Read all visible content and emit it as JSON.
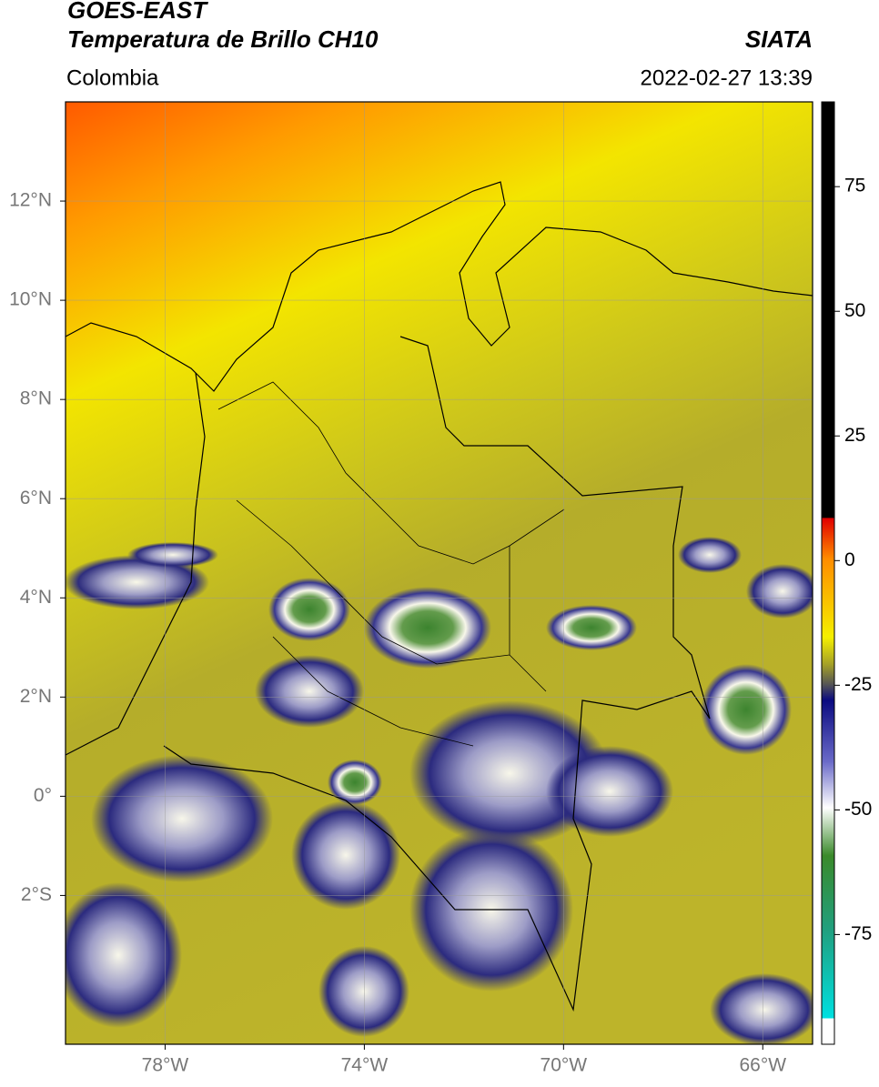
{
  "header": {
    "title_line1": "GOES-EAST",
    "title_line2": "Temperatura de Brillo CH10",
    "source": "SIATA",
    "region": "Colombia",
    "datetime": "2022-02-27 13:39"
  },
  "map": {
    "lonlim": [
      -80,
      -65
    ],
    "latlim": [
      -5,
      14
    ],
    "lonticks": [
      {
        "value": -78,
        "label": "78°W"
      },
      {
        "value": -74,
        "label": "74°W"
      },
      {
        "value": -70,
        "label": "70°W"
      },
      {
        "value": -66,
        "label": "66°W"
      }
    ],
    "latticks": [
      {
        "value": 12,
        "label": "12°N"
      },
      {
        "value": 10,
        "label": "10°N"
      },
      {
        "value": 8,
        "label": "8°N"
      },
      {
        "value": 6,
        "label": "6°N"
      },
      {
        "value": 4,
        "label": "4°N"
      },
      {
        "value": 2,
        "label": "2°N"
      },
      {
        "value": 0,
        "label": "0°"
      },
      {
        "value": -2,
        "label": "2°S"
      }
    ],
    "grid": true
  },
  "colorbar": {
    "lim": [
      -97,
      92
    ],
    "ticks": [
      75,
      50,
      25,
      0,
      -25,
      -50,
      -75
    ]
  }
}
